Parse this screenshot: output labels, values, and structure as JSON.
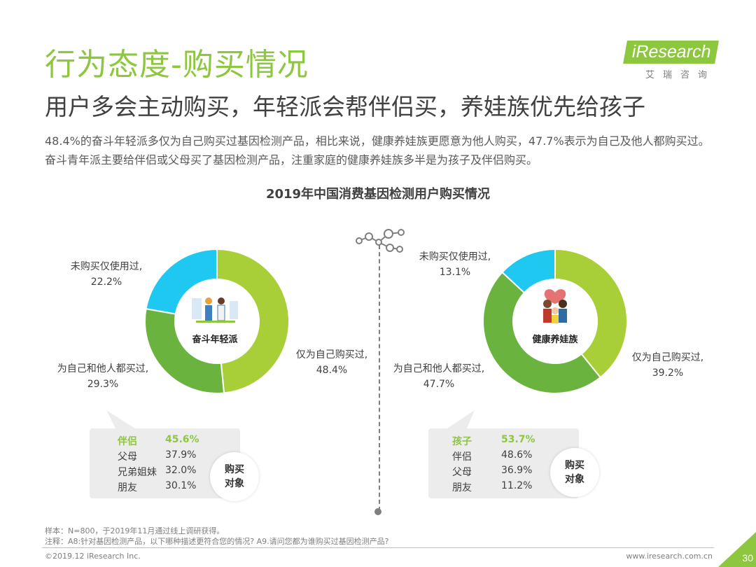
{
  "header": {
    "title": "行为态度-购买情况",
    "subtitle": "用户多会主动购买，年轻派会帮伴侣买，养娃族优先给孩子",
    "description": "48.4%的奋斗年轻派多仅为自己购买过基因检测产品，相比来说，健康养娃族更愿意为他人购买，47.7%表示为自己及他人都购买过。奋斗青年派主要给伴侣或父母买了基因检测产品，注重家庭的健康养娃族多半是为孩子及伴侣购买。"
  },
  "logo": {
    "main": "iResearch",
    "sub": "艾瑞咨询"
  },
  "chart_title": "2019年中国消费基因检测用户购买情况",
  "colors": {
    "self_only": "#a9cf38",
    "both": "#6bb33f",
    "use_only": "#1ec8f0",
    "accent": "#8dc63f"
  },
  "chart_data": [
    {
      "type": "pie",
      "center_label": "奋斗年轻派",
      "slices": [
        {
          "label": "仅为自己购买过,",
          "value": 48.4,
          "display": "48.4%",
          "color": "#a9cf38"
        },
        {
          "label": "为自己和他人都买过,",
          "value": 29.3,
          "display": "29.3%",
          "color": "#6bb33f"
        },
        {
          "label": "未购买仅使用过,",
          "value": 22.2,
          "display": "22.2%",
          "color": "#1ec8f0"
        }
      ],
      "purchase_targets": [
        {
          "label": "伴侣",
          "value": "45.6%",
          "highlight": true
        },
        {
          "label": "父母",
          "value": "37.9%",
          "highlight": false
        },
        {
          "label": "兄弟姐妹",
          "value": "32.0%",
          "highlight": false
        },
        {
          "label": "朋友",
          "value": "30.1%",
          "highlight": false
        }
      ],
      "badge": [
        "购买",
        "对象"
      ]
    },
    {
      "type": "pie",
      "center_label": "健康养娃族",
      "slices": [
        {
          "label": "仅为自己购买过,",
          "value": 39.2,
          "display": "39.2%",
          "color": "#a9cf38"
        },
        {
          "label": "为自己和他人都买过,",
          "value": 47.7,
          "display": "47.7%",
          "color": "#6bb33f"
        },
        {
          "label": "未购买仅使用过,",
          "value": 13.1,
          "display": "13.1%",
          "color": "#1ec8f0"
        }
      ],
      "purchase_targets": [
        {
          "label": "孩子",
          "value": "53.7%",
          "highlight": true
        },
        {
          "label": "伴侣",
          "value": "48.6%",
          "highlight": false
        },
        {
          "label": "父母",
          "value": "36.9%",
          "highlight": false
        },
        {
          "label": "朋友",
          "value": "11.2%",
          "highlight": false
        }
      ],
      "badge": [
        "购买",
        "对象"
      ]
    }
  ],
  "footer": {
    "sample": "样本：N=800，于2019年11月通过线上调研获得。",
    "note": "注释：A8:针对基因检测产品，以下哪种描述更符合您的情况? A9.请问您都为谁购买过基因检测产品?",
    "copyright": "©2019.12 iResearch Inc.",
    "website": "www.iresearch.com.cn",
    "page": "30"
  }
}
